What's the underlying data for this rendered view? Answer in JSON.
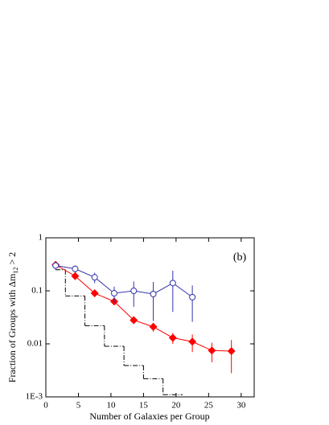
{
  "chart_data": {
    "type": "line",
    "annotation": "(b)",
    "x_label": "Number of Galaxies per Group",
    "y_label": {
      "text": "Fraction of Groups with Δm",
      "subscript": "12",
      "suffix": " > 2"
    },
    "xlim": [
      0,
      32
    ],
    "xticks": [
      0,
      5,
      10,
      15,
      20,
      25,
      30
    ],
    "ylim": [
      0.001,
      1
    ],
    "yscale": "log",
    "yticks": [
      1,
      0.1,
      0.01,
      {
        "value": 0.001,
        "label": "1E-3"
      }
    ],
    "series": [
      {
        "color": "#ff0000",
        "marker": "diamond",
        "x": [
          1.5,
          4.5,
          7.5,
          10.5,
          13.5,
          16.5,
          19.5,
          22.5,
          25.5,
          28.5
        ],
        "values": [
          0.31,
          0.19,
          0.09,
          0.063,
          0.028,
          0.021,
          0.013,
          0.011,
          0.0075,
          0.0073
        ],
        "errors": [
          0.05,
          0.02,
          0.01,
          0.008,
          0.004,
          0.004,
          0.003,
          0.004,
          0.003,
          0.0045
        ]
      },
      {
        "color": "#3333aa",
        "marker": "circle",
        "x": [
          1.5,
          4.5,
          7.5,
          10.5,
          13.5,
          16.5,
          19.5,
          22.5
        ],
        "values": [
          0.3,
          0.26,
          0.18,
          0.09,
          0.1,
          0.087,
          0.14,
          0.076
        ],
        "errors": [
          0.05,
          0.04,
          0.04,
          0.03,
          0.05,
          0.06,
          0.1,
          0.05
        ]
      }
    ],
    "steps": {
      "color": "#000000",
      "bins": [
        1.5,
        3,
        6,
        9,
        12,
        15,
        18,
        21
      ],
      "values": [
        0.25,
        0.08,
        0.022,
        0.009,
        0.0039,
        0.0022,
        0.0011
      ]
    }
  }
}
